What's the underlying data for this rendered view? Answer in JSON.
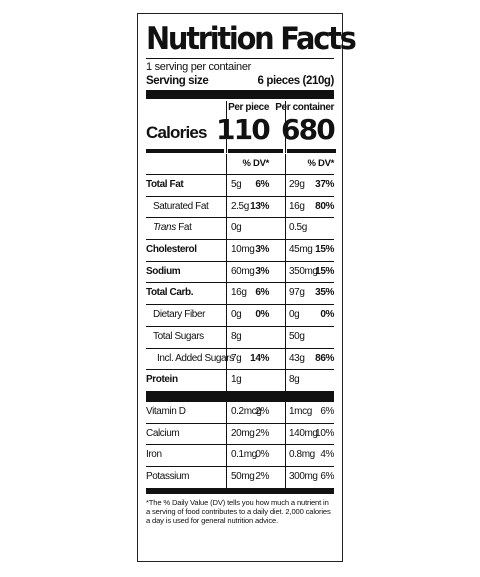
{
  "title": "Nutrition Facts",
  "servings_per_container": "1 serving per container",
  "serving_size_label": "Serving size",
  "serving_size_value": "6 pieces (210g)",
  "columns": {
    "per_piece": "Per piece",
    "per_container": "Per container"
  },
  "calories": {
    "label": "Calories",
    "per_piece": "110",
    "per_container": "680"
  },
  "dv_label": "% DV*",
  "nutrients": [
    {
      "name": "Total Fat",
      "bold": true,
      "indent": 0,
      "pp_amt": "5g",
      "pp_dv": "6%",
      "pc_amt": "29g",
      "pc_dv": "37%"
    },
    {
      "name": "Saturated Fat",
      "bold": false,
      "indent": 1,
      "pp_amt": "2.5g",
      "pp_dv": "13%",
      "pc_amt": "16g",
      "pc_dv": "80%"
    },
    {
      "name": "Trans Fat",
      "bold": false,
      "indent": 1,
      "italic_prefix": "Trans",
      "pp_amt": "0g",
      "pp_dv": "",
      "pc_amt": "0.5g",
      "pc_dv": ""
    },
    {
      "name": "Cholesterol",
      "bold": true,
      "indent": 0,
      "pp_amt": "10mg",
      "pp_dv": "3%",
      "pc_amt": "45mg",
      "pc_dv": "15%"
    },
    {
      "name": "Sodium",
      "bold": true,
      "indent": 0,
      "pp_amt": "60mg",
      "pp_dv": "3%",
      "pc_amt": "350mg",
      "pc_dv": "15%"
    },
    {
      "name": "Total Carb.",
      "bold": true,
      "indent": 0,
      "pp_amt": "16g",
      "pp_dv": "6%",
      "pc_amt": "97g",
      "pc_dv": "35%"
    },
    {
      "name": "Dietary Fiber",
      "bold": false,
      "indent": 1,
      "pp_amt": "0g",
      "pp_dv": "0%",
      "pc_amt": "0g",
      "pc_dv": "0%"
    },
    {
      "name": "Total Sugars",
      "bold": false,
      "indent": 1,
      "pp_amt": "8g",
      "pp_dv": "",
      "pc_amt": "50g",
      "pc_dv": ""
    },
    {
      "name": "Incl. Added Sugars",
      "bold": false,
      "indent": 2,
      "pp_amt": "7g",
      "pp_dv": "14%",
      "pc_amt": "43g",
      "pc_dv": "86%"
    },
    {
      "name": "Protein",
      "bold": true,
      "indent": 0,
      "pp_amt": "1g",
      "pp_dv": "",
      "pc_amt": "8g",
      "pc_dv": ""
    }
  ],
  "vitamins": [
    {
      "name": "Vitamin D",
      "pp_amt": "0.2mcg",
      "pp_dv": "2%",
      "pc_amt": "1mcg",
      "pc_dv": "6%"
    },
    {
      "name": "Calcium",
      "pp_amt": "20mg",
      "pp_dv": "2%",
      "pc_amt": "140mg",
      "pc_dv": "10%"
    },
    {
      "name": "Iron",
      "pp_amt": "0.1mg",
      "pp_dv": "0%",
      "pc_amt": "0.8mg",
      "pc_dv": "4%"
    },
    {
      "name": "Potassium",
      "pp_amt": "50mg",
      "pp_dv": "2%",
      "pc_amt": "300mg",
      "pc_dv": "6%"
    }
  ],
  "footnote": "*The % Daily Value (DV) tells you how much a nutrient in a serving of food contributes to a daily diet. 2,000 calories a day is used for general nutrition advice."
}
